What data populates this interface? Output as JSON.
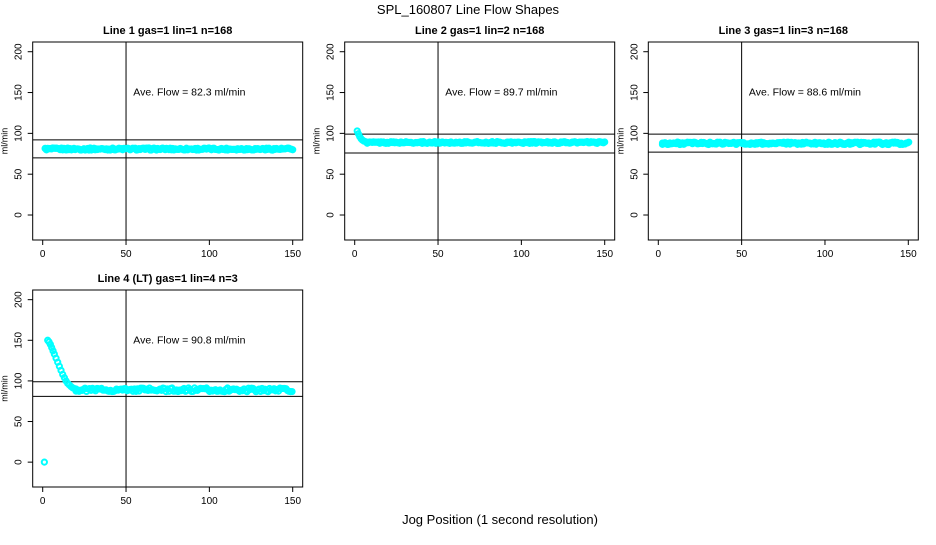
{
  "page": {
    "title": "SPL_160807  Line Flow Shapes",
    "xlabel": "Jog Position (1 second resolution)"
  },
  "colors": {
    "points": "#00FFFF",
    "axis": "#000000",
    "background": "#FFFFFF"
  },
  "chart_data": {
    "type": "scatter",
    "title": "SPL_160807  Line Flow Shapes",
    "xlabel": "Jog Position (1 second resolution)",
    "ylabel": "ml/min",
    "xlim": [
      -6,
      156
    ],
    "ylim": [
      -30.6,
      211.9
    ],
    "xticks": [
      0,
      50,
      100,
      150
    ],
    "yticks": [
      0,
      50,
      100,
      150,
      200
    ],
    "grid": false,
    "legend": false,
    "marker": "open-circle",
    "marker_color": "#00FFFF",
    "panels": [
      {
        "id": "line1",
        "title": "Line 1 gas=1 lin=1 n=168",
        "line": 1,
        "gas": 1,
        "lin": 1,
        "n": 168,
        "ave_flow": 82.3,
        "annotation": "Ave. Flow =  82.3  ml/min",
        "annotation_xy": [
          88,
          150
        ],
        "vline_x": 50,
        "hlines": [
          92,
          70
        ],
        "lead_points": [
          [
            1.5,
            81.5
          ]
        ],
        "band": {
          "x_from": 1.5,
          "x_to": 150.5,
          "y": 80.8,
          "noise": 1.3,
          "step": 0.75
        },
        "outliers": []
      },
      {
        "id": "line2",
        "title": "Line 2 gas=1 lin=2 n=168",
        "line": 2,
        "gas": 1,
        "lin": 2,
        "n": 168,
        "ave_flow": 89.7,
        "annotation": "Ave. Flow =  89.7  ml/min",
        "annotation_xy": [
          88,
          150
        ],
        "vline_x": 50,
        "hlines": [
          99,
          76
        ],
        "lead_points": [
          [
            1.5,
            103
          ],
          [
            2.2,
            99.5
          ],
          [
            3,
            96
          ],
          [
            3.8,
            93.5
          ],
          [
            4.6,
            91.8
          ],
          [
            5.5,
            90.6
          ],
          [
            6.5,
            89.8
          ],
          [
            7.5,
            89.2
          ]
        ],
        "band": {
          "x_from": 7.5,
          "x_to": 150.5,
          "y": 88.8,
          "noise": 1.1,
          "step": 0.75
        },
        "outliers": []
      },
      {
        "id": "line3",
        "title": "Line 3 gas=1 lin=3 n=168",
        "line": 3,
        "gas": 1,
        "lin": 3,
        "n": 168,
        "ave_flow": 88.6,
        "annotation": "Ave. Flow =  88.6  ml/min",
        "annotation_xy": [
          88,
          150
        ],
        "vline_x": 50,
        "hlines": [
          99,
          77
        ],
        "lead_points": [
          [
            2.5,
            86.5
          ]
        ],
        "band": {
          "x_from": 2.5,
          "x_to": 150.5,
          "y": 87.8,
          "noise": 1.5,
          "step": 0.75
        },
        "outliers": []
      },
      {
        "id": "line4",
        "title": "Line 4 (LT) gas=1 lin=4 n=3",
        "line": 4,
        "gas": 1,
        "lin": 4,
        "n": 3,
        "ave_flow": 90.8,
        "annotation": "Ave. Flow =  90.8  ml/min",
        "annotation_xy": [
          88,
          150
        ],
        "vline_x": 50,
        "hlines": [
          99,
          81
        ],
        "lead_points": [
          [
            3,
            150
          ],
          [
            3.8,
            148
          ],
          [
            4.6,
            145
          ],
          [
            5.4,
            141
          ],
          [
            6.2,
            137
          ],
          [
            7,
            133
          ],
          [
            8,
            128
          ],
          [
            9,
            123
          ],
          [
            10,
            118
          ],
          [
            11,
            113
          ],
          [
            12,
            108
          ],
          [
            13,
            104
          ],
          [
            14,
            100
          ],
          [
            15,
            97
          ],
          [
            16,
            95
          ],
          [
            17,
            93
          ],
          [
            18,
            91.5
          ],
          [
            19,
            90.5
          ],
          [
            20,
            90
          ]
        ],
        "band": {
          "x_from": 20,
          "x_to": 150.5,
          "y": 89,
          "noise": 2.3,
          "step": 0.9
        },
        "outliers": [
          [
            1,
            0
          ]
        ]
      }
    ]
  }
}
